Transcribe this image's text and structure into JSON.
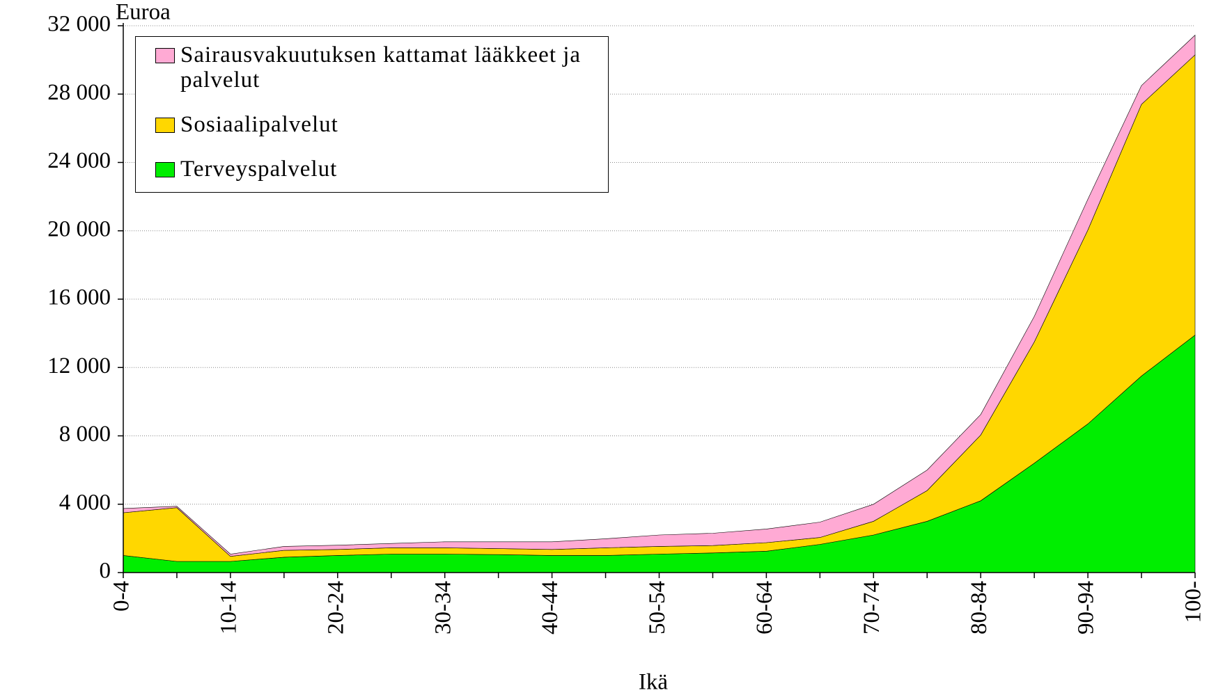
{
  "chart_data": {
    "type": "stacked_area",
    "y_axis_label": "Euroa",
    "x_axis_label": "Ikä",
    "categories": [
      "0-4",
      null,
      "10-14",
      null,
      "20-24",
      null,
      "30-34",
      null,
      "40-44",
      null,
      "50-54",
      null,
      "60-64",
      null,
      "70-74",
      null,
      "80-84",
      null,
      "90-94",
      null,
      "100-"
    ],
    "series": [
      {
        "name": "Terveyspalvelut",
        "color": "#00ee00",
        "values": [
          1000,
          650,
          650,
          900,
          1000,
          1080,
          1080,
          1050,
          1000,
          1000,
          1080,
          1150,
          1250,
          1650,
          2200,
          3000,
          4200,
          6400,
          8700,
          11500,
          13900
        ]
      },
      {
        "name": "Sosiaalipalvelut",
        "color": "#ffd700",
        "values": [
          2500,
          3150,
          300,
          400,
          350,
          370,
          370,
          350,
          350,
          450,
          450,
          430,
          500,
          400,
          800,
          1800,
          3850,
          7100,
          11350,
          15900,
          16400
        ]
      },
      {
        "name": "Sairausvakuutuksen kattamat lääkkeet ja palvelut",
        "color": "#ffaad4",
        "values": [
          250,
          80,
          130,
          230,
          250,
          250,
          350,
          400,
          450,
          530,
          670,
          720,
          800,
          900,
          1000,
          1200,
          1200,
          1500,
          1800,
          1100,
          1150
        ]
      }
    ],
    "ylim": [
      0,
      32000
    ],
    "yticks": [
      0,
      {
        "value": 4000,
        "label": "4 000"
      },
      {
        "value": 8000,
        "label": "8 000"
      },
      {
        "value": 12000,
        "label": "12 000"
      },
      {
        "value": 16000,
        "label": "16 000"
      },
      {
        "value": 20000,
        "label": "20 000"
      },
      {
        "value": 24000,
        "label": "24 000"
      },
      {
        "value": 28000,
        "label": "28 000"
      },
      {
        "value": 32000,
        "label": "32 000"
      }
    ],
    "grid": true,
    "legend": "top-left"
  }
}
